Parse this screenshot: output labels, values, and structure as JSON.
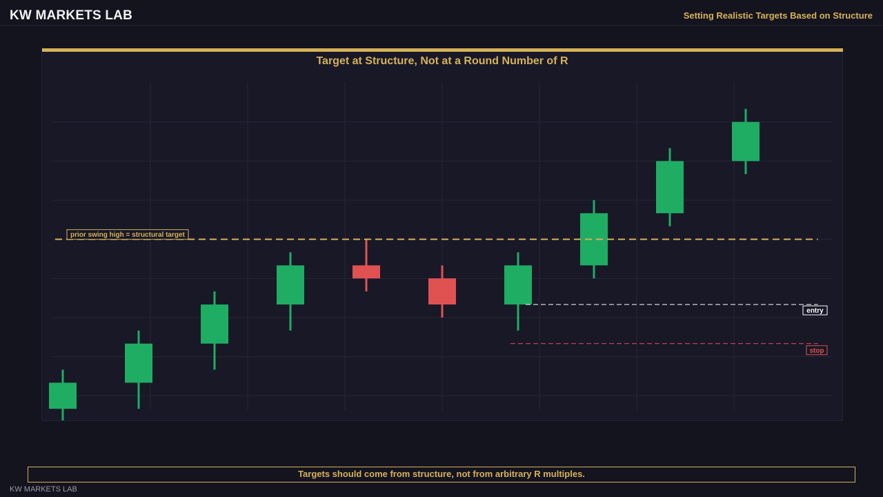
{
  "header": {
    "brand": "KW MARKETS LAB",
    "subtitle": "Setting Realistic Targets Based on Structure"
  },
  "footer": {
    "note": "Targets should come from structure, not from arbitrary R multiples.",
    "watermark": "KW MARKETS LAB"
  },
  "colors": {
    "bullish": "#1fad63",
    "bearish": "#e05252",
    "accent": "#d6b25a",
    "entry": "#ffffff",
    "stop": "#e05252",
    "grid": "#262636"
  },
  "chart_data": {
    "type": "candlestick",
    "title": "Target at Structure, Not at a Round Number of R",
    "grid": true,
    "ylim": [
      0,
      27
    ],
    "candles": [
      {
        "x": 1,
        "open": 2,
        "close": 4,
        "high": 5,
        "low": 1
      },
      {
        "x": 2,
        "open": 4,
        "close": 7,
        "high": 8,
        "low": 2
      },
      {
        "x": 3,
        "open": 7,
        "close": 10,
        "high": 11,
        "low": 5
      },
      {
        "x": 4,
        "open": 10,
        "close": 13,
        "high": 14,
        "low": 8
      },
      {
        "x": 5,
        "open": 13,
        "close": 12,
        "high": 15,
        "low": 11
      },
      {
        "x": 6,
        "open": 12,
        "close": 10,
        "high": 13,
        "low": 9
      },
      {
        "x": 7,
        "open": 10,
        "close": 13,
        "high": 14,
        "low": 8
      },
      {
        "x": 8,
        "open": 13,
        "close": 17,
        "high": 18,
        "low": 12
      },
      {
        "x": 9,
        "open": 17,
        "close": 21,
        "high": 22,
        "low": 16
      },
      {
        "x": 10,
        "open": 21,
        "close": 24,
        "high": 25,
        "low": 20
      }
    ],
    "levels": [
      {
        "name": "target",
        "value": 15,
        "label": "prior swing high = structural target",
        "from_x": 0.9,
        "to_x": 10.95
      },
      {
        "name": "entry",
        "value": 10,
        "label": "entry",
        "from_x": 7.1,
        "to_x": 10.95
      },
      {
        "name": "stop",
        "value": 7,
        "label": "stop",
        "from_x": 6.9,
        "to_x": 10.95
      }
    ]
  }
}
